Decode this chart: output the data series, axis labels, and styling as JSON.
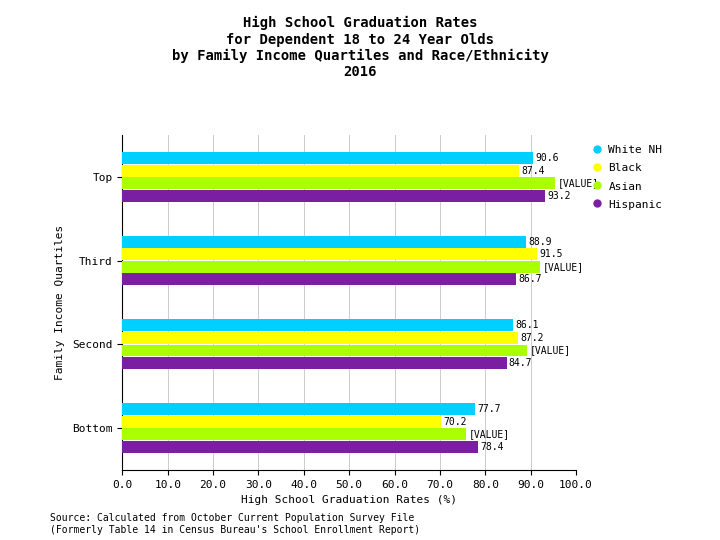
{
  "title": "High School Graduation Rates\nfor Dependent 18 to 24 Year Olds\nby Family Income Quartiles and Race/Ethnicity\n2016",
  "xlabel": "High School Graduation Rates (%)",
  "ylabel": "Family Income Quartiles",
  "categories": [
    "Bottom",
    "Second",
    "Third",
    "Top"
  ],
  "series_order": [
    "White NH",
    "Black",
    "Asian",
    "Hispanic"
  ],
  "series": {
    "White NH": [
      77.7,
      86.1,
      88.9,
      90.6
    ],
    "Black": [
      70.2,
      87.2,
      91.5,
      87.4
    ],
    "Asian": [
      75.8,
      89.3,
      92.1,
      95.4
    ],
    "Hispanic": [
      78.4,
      84.7,
      86.7,
      93.2
    ]
  },
  "value_labels": {
    "White NH": [
      "77.7",
      "86.1",
      "88.9",
      "90.6"
    ],
    "Black": [
      "70.2",
      "87.2",
      "91.5",
      "87.4"
    ],
    "Asian": [
      "[VALUE]",
      "[VALUE]",
      "[VALUE]",
      "[VALUE]"
    ],
    "Hispanic": [
      "78.4",
      "84.7",
      "86.7",
      "93.2"
    ]
  },
  "colors": {
    "White NH": "#00CFFF",
    "Black": "#FFFF00",
    "Asian": "#AAFF00",
    "Hispanic": "#7B1FA2"
  },
  "xlim": [
    0,
    100
  ],
  "xticks": [
    0.0,
    10.0,
    20.0,
    30.0,
    40.0,
    50.0,
    60.0,
    70.0,
    80.0,
    90.0,
    100.0
  ],
  "source_text": "Source: Calculated from October Current Population Survey File\n(Formerly Table 14 in Census Bureau's School Enrollment Report)",
  "bar_height": 0.15,
  "background_color": "#FFFFFF",
  "grid_color": "#CCCCCC",
  "label_fontsize": 7,
  "tick_fontsize": 8,
  "title_fontsize": 10,
  "legend_fontsize": 8,
  "source_fontsize": 7
}
